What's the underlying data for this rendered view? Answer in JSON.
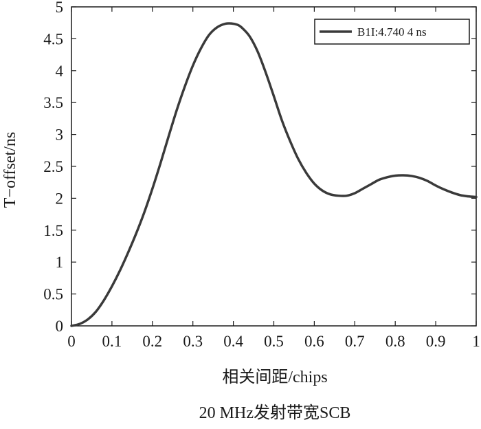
{
  "chart_data": {
    "type": "line",
    "title": "20 MHz发射带宽SCB",
    "xlabel": "相关间距/chips",
    "ylabel": "T−offset/ns",
    "xlim": [
      0,
      1
    ],
    "ylim": [
      0,
      5
    ],
    "xticks": [
      0,
      0.1,
      0.2,
      0.3,
      0.4,
      0.5,
      0.6,
      0.7,
      0.8,
      0.9,
      1
    ],
    "xtick_labels": [
      "0",
      "0.1",
      "0.2",
      "0.3",
      "0.4",
      "0.5",
      "0.6",
      "0.7",
      "0.8",
      "0.9",
      "1"
    ],
    "yticks": [
      0,
      0.5,
      1,
      1.5,
      2,
      2.5,
      3,
      3.5,
      4,
      4.5,
      5
    ],
    "ytick_labels": [
      "0",
      "0.5",
      "1",
      "1.5",
      "2",
      "2.5",
      "3",
      "3.5",
      "4",
      "4.5",
      "5"
    ],
    "grid": false,
    "legend_position": "top-right",
    "line_color": "#3a3a3a",
    "series": [
      {
        "name": "B1I:4.740 4 ns",
        "x": [
          0,
          0.02,
          0.04,
          0.06,
          0.08,
          0.1,
          0.12,
          0.14,
          0.16,
          0.18,
          0.2,
          0.22,
          0.24,
          0.26,
          0.28,
          0.3,
          0.32,
          0.34,
          0.36,
          0.38,
          0.395,
          0.41,
          0.42,
          0.44,
          0.46,
          0.48,
          0.5,
          0.52,
          0.54,
          0.56,
          0.58,
          0.6,
          0.62,
          0.64,
          0.66,
          0.68,
          0.7,
          0.72,
          0.74,
          0.76,
          0.78,
          0.8,
          0.82,
          0.84,
          0.86,
          0.88,
          0.9,
          0.92,
          0.94,
          0.96,
          0.98,
          1.0
        ],
        "y": [
          0,
          0.03,
          0.1,
          0.22,
          0.4,
          0.62,
          0.87,
          1.15,
          1.45,
          1.78,
          2.15,
          2.55,
          2.97,
          3.38,
          3.75,
          4.08,
          4.35,
          4.56,
          4.68,
          4.735,
          4.74,
          4.72,
          4.68,
          4.54,
          4.3,
          3.97,
          3.6,
          3.22,
          2.9,
          2.62,
          2.4,
          2.23,
          2.12,
          2.06,
          2.04,
          2.04,
          2.08,
          2.15,
          2.22,
          2.29,
          2.33,
          2.355,
          2.36,
          2.35,
          2.32,
          2.27,
          2.2,
          2.14,
          2.09,
          2.05,
          2.03,
          2.02
        ]
      }
    ]
  }
}
